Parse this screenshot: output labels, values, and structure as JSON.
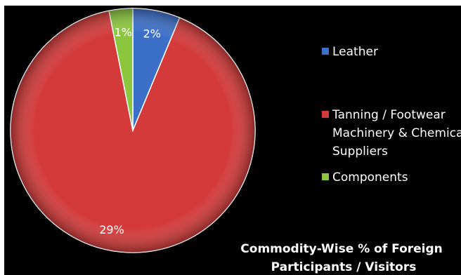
{
  "chart_data": {
    "type": "pie",
    "title_lines": [
      "Commodity-Wise % of Foreign",
      "Participants / Visitors"
    ],
    "slices": [
      {
        "label": "Leather",
        "value": 2,
        "display": "2%",
        "color": "#3b6fc8"
      },
      {
        "label": "Tanning / Footwear Machinery & Chemical Suppliers",
        "value": 29,
        "display": "29%",
        "color": "#d43a3a"
      },
      {
        "label": "Components",
        "value": 1,
        "display": "1%",
        "color": "#8cc63e"
      }
    ],
    "legend": [
      {
        "lines": [
          "Leather"
        ],
        "color": "#3b6fc8"
      },
      {
        "lines": [
          "Tanning / Footwear",
          "Machinery & Chemical",
          "Suppliers"
        ],
        "color": "#d43a3a"
      },
      {
        "lines": [
          "Components"
        ],
        "color": "#8cc63e"
      }
    ],
    "legend_position": "right",
    "background": "#000000"
  }
}
